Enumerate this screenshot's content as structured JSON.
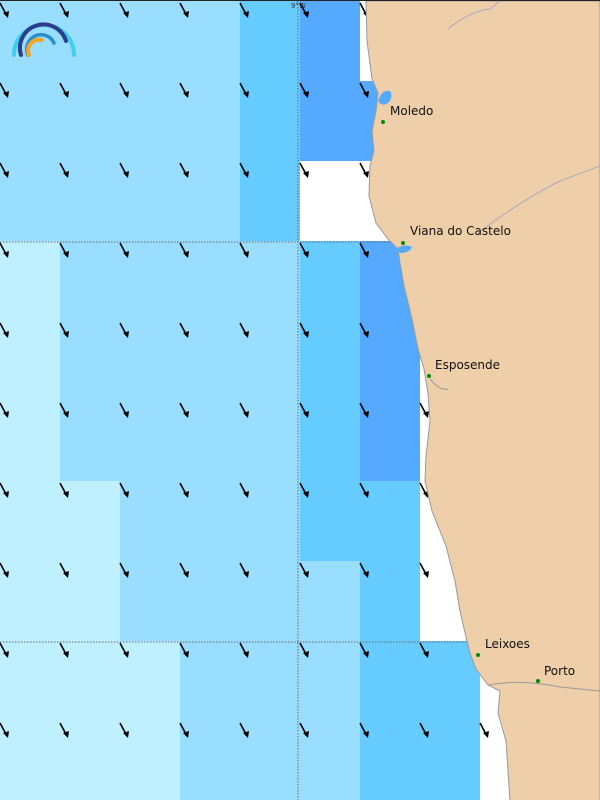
{
  "map": {
    "longitude_tick": "9°W",
    "colors": {
      "level1": "#bff0ff",
      "level2": "#99ddff",
      "level3": "#66ccff",
      "level4": "#55aaff",
      "no_data": "#ffffff",
      "land": "#eecfaa",
      "coast": "#999999",
      "city_dot": "#008800"
    },
    "grid_levels": [
      [
        2,
        2,
        2,
        2,
        3,
        4,
        0,
        0,
        0,
        0
      ],
      [
        2,
        2,
        2,
        2,
        3,
        4,
        4,
        0,
        0,
        0
      ],
      [
        2,
        2,
        2,
        2,
        3,
        0,
        0,
        0,
        0,
        0
      ],
      [
        1,
        2,
        2,
        2,
        2,
        3,
        4,
        0,
        0,
        0
      ],
      [
        1,
        2,
        2,
        2,
        2,
        3,
        4,
        0,
        0,
        0
      ],
      [
        1,
        2,
        2,
        2,
        2,
        3,
        4,
        0,
        0,
        0
      ],
      [
        1,
        1,
        2,
        2,
        2,
        3,
        3,
        0,
        0,
        0
      ],
      [
        1,
        1,
        2,
        2,
        2,
        2,
        3,
        0,
        0,
        0
      ],
      [
        1,
        1,
        1,
        2,
        2,
        2,
        3,
        3,
        0,
        0
      ],
      [
        1,
        1,
        1,
        2,
        2,
        2,
        3,
        3,
        0,
        0
      ]
    ],
    "arrow_direction": "south-southeast",
    "cities": [
      {
        "name": "Moledo"
      },
      {
        "name": "Viana do Castelo"
      },
      {
        "name": "Esposende"
      },
      {
        "name": "Leixoes"
      },
      {
        "name": "Porto"
      }
    ]
  }
}
